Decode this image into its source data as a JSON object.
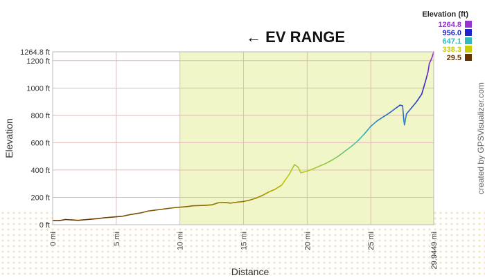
{
  "chart_data": {
    "type": "line",
    "annotation": "← EV RANGE",
    "xlabel": "Distance",
    "ylabel": "Elevation",
    "xlim": [
      0,
      29.9449
    ],
    "ylim": [
      0,
      1264.8
    ],
    "x_ticks": [
      {
        "value": 0,
        "label": "0 mi"
      },
      {
        "value": 5,
        "label": "5 mi"
      },
      {
        "value": 10,
        "label": "10 mi"
      },
      {
        "value": 15,
        "label": "15 mi"
      },
      {
        "value": 20,
        "label": "20 mi"
      },
      {
        "value": 25,
        "label": "25 mi"
      },
      {
        "value": 29.9449,
        "label": "29.9449 mi"
      }
    ],
    "y_ticks": [
      {
        "value": 0,
        "label": "0 ft"
      },
      {
        "value": 200,
        "label": "200 ft"
      },
      {
        "value": 400,
        "label": "400 ft"
      },
      {
        "value": 600,
        "label": "600 ft"
      },
      {
        "value": 800,
        "label": "800 ft"
      },
      {
        "value": 1000,
        "label": "1000 ft"
      },
      {
        "value": 1200,
        "label": "1200 ft"
      },
      {
        "value": 1264.8,
        "label": "1264.8 ft"
      }
    ],
    "highlight_range": {
      "x_start": 10,
      "x_end": 29.9449,
      "color": "#f0f6c8"
    },
    "legend": {
      "title": "Elevation (ft)",
      "position": "top-right",
      "entries": [
        {
          "label": "1264.8",
          "color": "#9933cc"
        },
        {
          "label": "956.0",
          "color": "#2222cc"
        },
        {
          "label": "647.1",
          "color": "#33bbbb"
        },
        {
          "label": "338.3",
          "color": "#cccc00"
        },
        {
          "label": "29.5",
          "color": "#663300"
        }
      ]
    },
    "points": [
      [
        0,
        30
      ],
      [
        0.5,
        29.5
      ],
      [
        1,
        38
      ],
      [
        1.5,
        35
      ],
      [
        2,
        32
      ],
      [
        2.5,
        36
      ],
      [
        3,
        40
      ],
      [
        3.5,
        44
      ],
      [
        4,
        50
      ],
      [
        4.5,
        54
      ],
      [
        5,
        58
      ],
      [
        5.5,
        62
      ],
      [
        6,
        72
      ],
      [
        6.5,
        80
      ],
      [
        7,
        88
      ],
      [
        7.5,
        100
      ],
      [
        8,
        106
      ],
      [
        8.5,
        112
      ],
      [
        9,
        118
      ],
      [
        9.5,
        124
      ],
      [
        10,
        128
      ],
      [
        10.5,
        132
      ],
      [
        11,
        138
      ],
      [
        12,
        142
      ],
      [
        12.5,
        145
      ],
      [
        13,
        160
      ],
      [
        13.5,
        163
      ],
      [
        14,
        158
      ],
      [
        14.5,
        165
      ],
      [
        15,
        170
      ],
      [
        15.5,
        180
      ],
      [
        16,
        195
      ],
      [
        16.5,
        215
      ],
      [
        17,
        240
      ],
      [
        17.5,
        260
      ],
      [
        18,
        290
      ],
      [
        18.3,
        330
      ],
      [
        18.6,
        370
      ],
      [
        19,
        440
      ],
      [
        19.3,
        420
      ],
      [
        19.5,
        380
      ],
      [
        20,
        392
      ],
      [
        20.5,
        410
      ],
      [
        21,
        430
      ],
      [
        21.5,
        450
      ],
      [
        22,
        475
      ],
      [
        22.5,
        505
      ],
      [
        23,
        540
      ],
      [
        23.5,
        575
      ],
      [
        24,
        615
      ],
      [
        24.5,
        665
      ],
      [
        25,
        720
      ],
      [
        25.5,
        760
      ],
      [
        26,
        790
      ],
      [
        26.5,
        820
      ],
      [
        27,
        855
      ],
      [
        27.3,
        875
      ],
      [
        27.5,
        870
      ],
      [
        27.6,
        760
      ],
      [
        27.65,
        730
      ],
      [
        27.8,
        810
      ],
      [
        28.2,
        855
      ],
      [
        28.6,
        900
      ],
      [
        29,
        955
      ],
      [
        29.3,
        1050
      ],
      [
        29.5,
        1120
      ],
      [
        29.6,
        1180
      ],
      [
        29.75,
        1210
      ],
      [
        29.85,
        1235
      ],
      [
        29.9449,
        1264.8
      ]
    ]
  },
  "credit": "created by GPSVisualizer.com"
}
